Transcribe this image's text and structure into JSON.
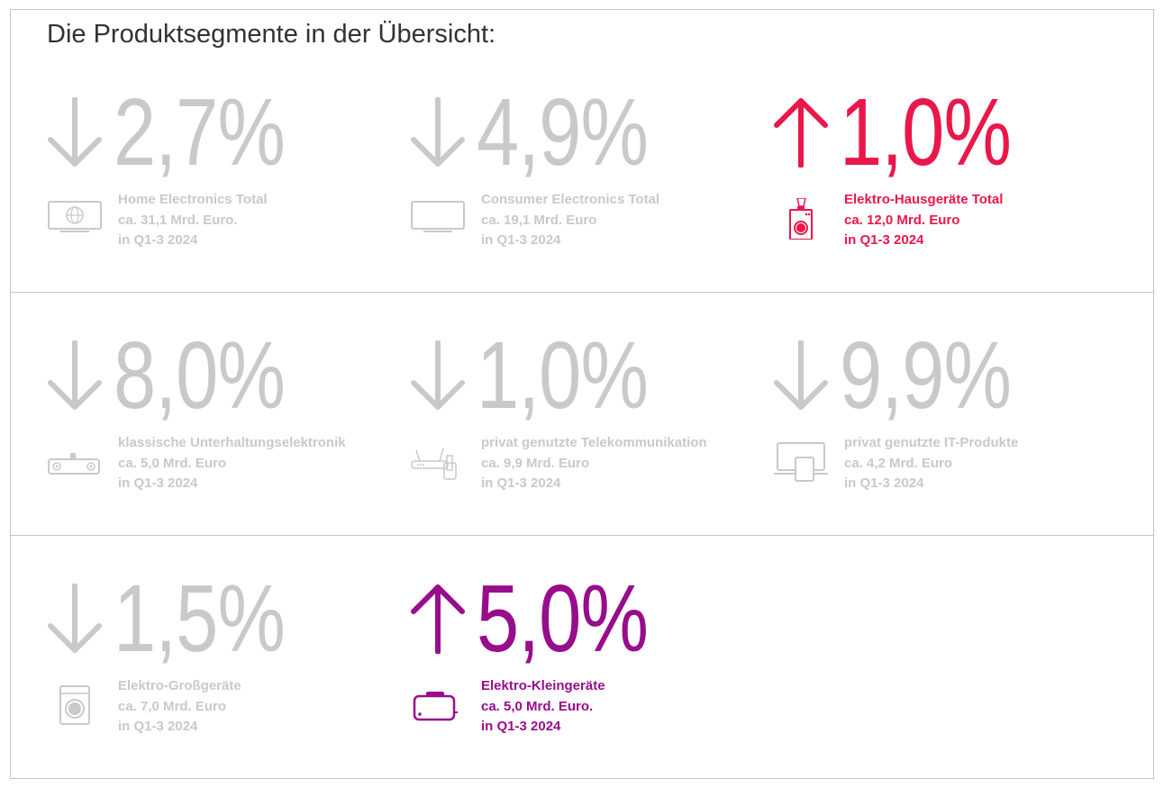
{
  "title": "Die Produktsegmente in der Übersicht:",
  "colors": {
    "neutral": "#c9c9c9",
    "up_red": "#e9174a",
    "up_purple": "#980d8c",
    "title": "#333333"
  },
  "segments": [
    {
      "direction": "down",
      "value": "2,7%",
      "name": "Home Electronics Total",
      "revenue": "ca. 31,1 Mrd. Euro.",
      "period": "in Q1-3 2024",
      "icon": "tv-globe-icon",
      "color": "#c9c9c9"
    },
    {
      "direction": "down",
      "value": "4,9%",
      "name": "Consumer Electronics Total",
      "revenue": "ca. 19,1 Mrd. Euro",
      "period": "in Q1-3 2024",
      "icon": "tv-icon",
      "color": "#c9c9c9"
    },
    {
      "direction": "up",
      "value": "1,0%",
      "name": "Elektro-Hausgeräte Total",
      "revenue": "ca. 12,0 Mrd. Euro",
      "period": "in Q1-3 2024",
      "icon": "washing-machine-blender-icon",
      "color": "#e9174a"
    },
    {
      "direction": "down",
      "value": "8,0%",
      "name": "klassische Unterhaltungselektronik",
      "revenue": "ca. 5,0 Mrd. Euro",
      "period": "in Q1-3 2024",
      "icon": "speaker-icon",
      "color": "#c9c9c9"
    },
    {
      "direction": "down",
      "value": "1,0%",
      "name": "privat genutzte Telekommunikation",
      "revenue": "ca. 9,9 Mrd. Euro",
      "period": "in Q1-3 2024",
      "icon": "router-phone-icon",
      "color": "#c9c9c9"
    },
    {
      "direction": "down",
      "value": "9,9%",
      "name": "privat genutzte IT-Produkte",
      "revenue": "ca. 4,2 Mrd. Euro",
      "period": "in Q1-3 2024",
      "icon": "laptop-tablet-icon",
      "color": "#c9c9c9"
    },
    {
      "direction": "down",
      "value": "1,5%",
      "name": "Elektro-Großgeräte",
      "revenue": "ca. 7,0 Mrd. Euro",
      "period": "in Q1-3 2024",
      "icon": "washing-machine-icon",
      "color": "#c9c9c9"
    },
    {
      "direction": "up",
      "value": "5,0%",
      "name": "Elektro-Kleingeräte",
      "revenue": "ca. 5,0 Mrd. Euro.",
      "period": "in Q1-3 2024",
      "icon": "toaster-icon",
      "color": "#980d8c"
    }
  ]
}
